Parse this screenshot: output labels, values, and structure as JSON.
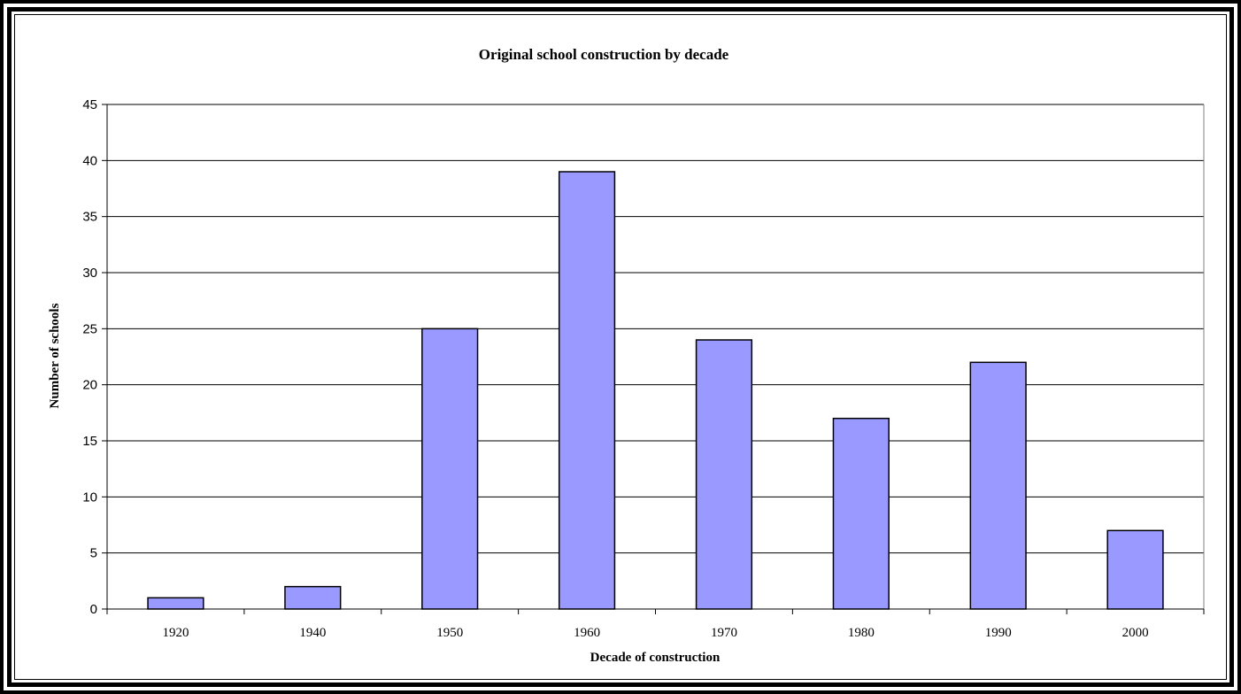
{
  "chart_data": {
    "type": "bar",
    "title": "Original school construction by decade",
    "xlabel": "Decade of construction",
    "ylabel": "Number of schools",
    "categories": [
      "1920",
      "1940",
      "1950",
      "1960",
      "1970",
      "1980",
      "1990",
      "2000"
    ],
    "values": [
      1,
      2,
      25,
      39,
      24,
      17,
      22,
      7
    ],
    "ylim": [
      0,
      45
    ],
    "yticks": [
      "0",
      "5",
      "10",
      "15",
      "20",
      "25",
      "30",
      "35",
      "40",
      "45"
    ],
    "grid": true,
    "legend": "none",
    "bar_color": "#9999ff"
  }
}
